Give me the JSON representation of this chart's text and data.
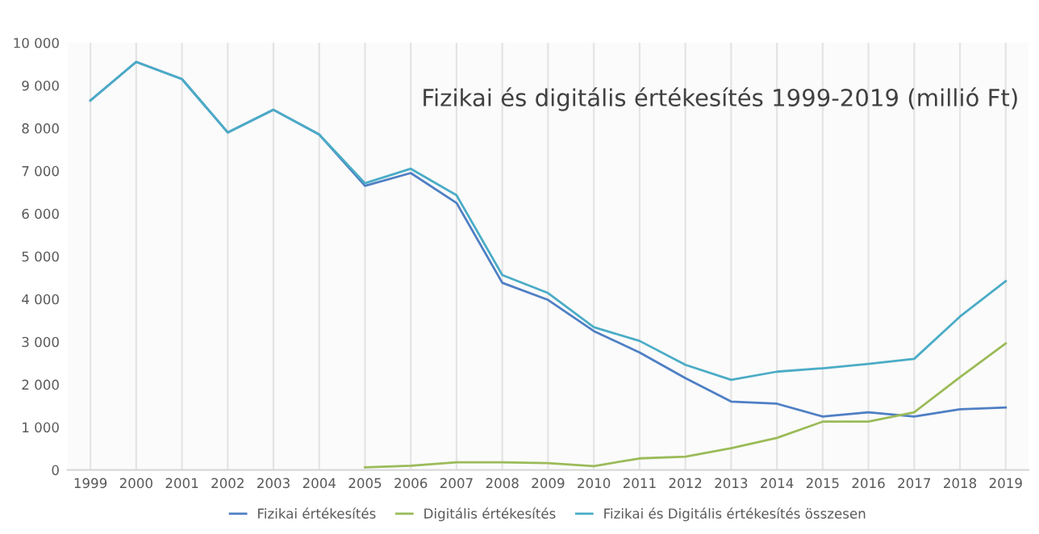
{
  "chart_data": {
    "type": "line",
    "title": "Fizikai és digitális értékesítés 1999-2019 (millió Ft)",
    "categories": [
      "1999",
      "2000",
      "2001",
      "2002",
      "2003",
      "2004",
      "2005",
      "2006",
      "2007",
      "2008",
      "2009",
      "2010",
      "2011",
      "2012",
      "2013",
      "2014",
      "2015",
      "2016",
      "2017",
      "2018",
      "2019"
    ],
    "series": [
      {
        "name": "Fizikai értékesítés",
        "color": "#4f7fc4",
        "values": [
          8650,
          9550,
          9150,
          7900,
          8430,
          7850,
          6650,
          6950,
          6250,
          4380,
          3980,
          3250,
          2750,
          2150,
          1600,
          1550,
          1250,
          1350,
          1250,
          1420,
          1460
        ]
      },
      {
        "name": "Digitális értékesítés",
        "color": "#9bbb59",
        "values": [
          null,
          null,
          null,
          null,
          null,
          null,
          60,
          100,
          180,
          180,
          160,
          90,
          270,
          310,
          510,
          750,
          1130,
          1130,
          1350,
          2170,
          2960
        ]
      },
      {
        "name": "Fizikai és Digitális értékesítés összesen",
        "color": "#4bacc6",
        "values": [
          8650,
          9550,
          9150,
          7900,
          8430,
          7850,
          6710,
          7050,
          6430,
          4560,
          4140,
          3340,
          3020,
          2460,
          2110,
          2300,
          2380,
          2480,
          2600,
          3590,
          4420
        ]
      }
    ],
    "ylim": [
      0,
      10000
    ],
    "yticks": [
      0,
      {
        "value": 1000,
        "label": "1 000"
      },
      {
        "value": 2000,
        "label": "2 000"
      },
      {
        "value": 3000,
        "label": "3 000"
      },
      {
        "value": 4000,
        "label": "4 000"
      },
      {
        "value": 5000,
        "label": "5 000"
      },
      {
        "value": 6000,
        "label": "6 000"
      },
      {
        "value": 7000,
        "label": "7 000"
      },
      {
        "value": 8000,
        "label": "8 000"
      },
      {
        "value": 9000,
        "label": "9 000"
      },
      {
        "value": 10000,
        "label": "10 000"
      }
    ],
    "grid": "x",
    "legend": "bottom"
  }
}
